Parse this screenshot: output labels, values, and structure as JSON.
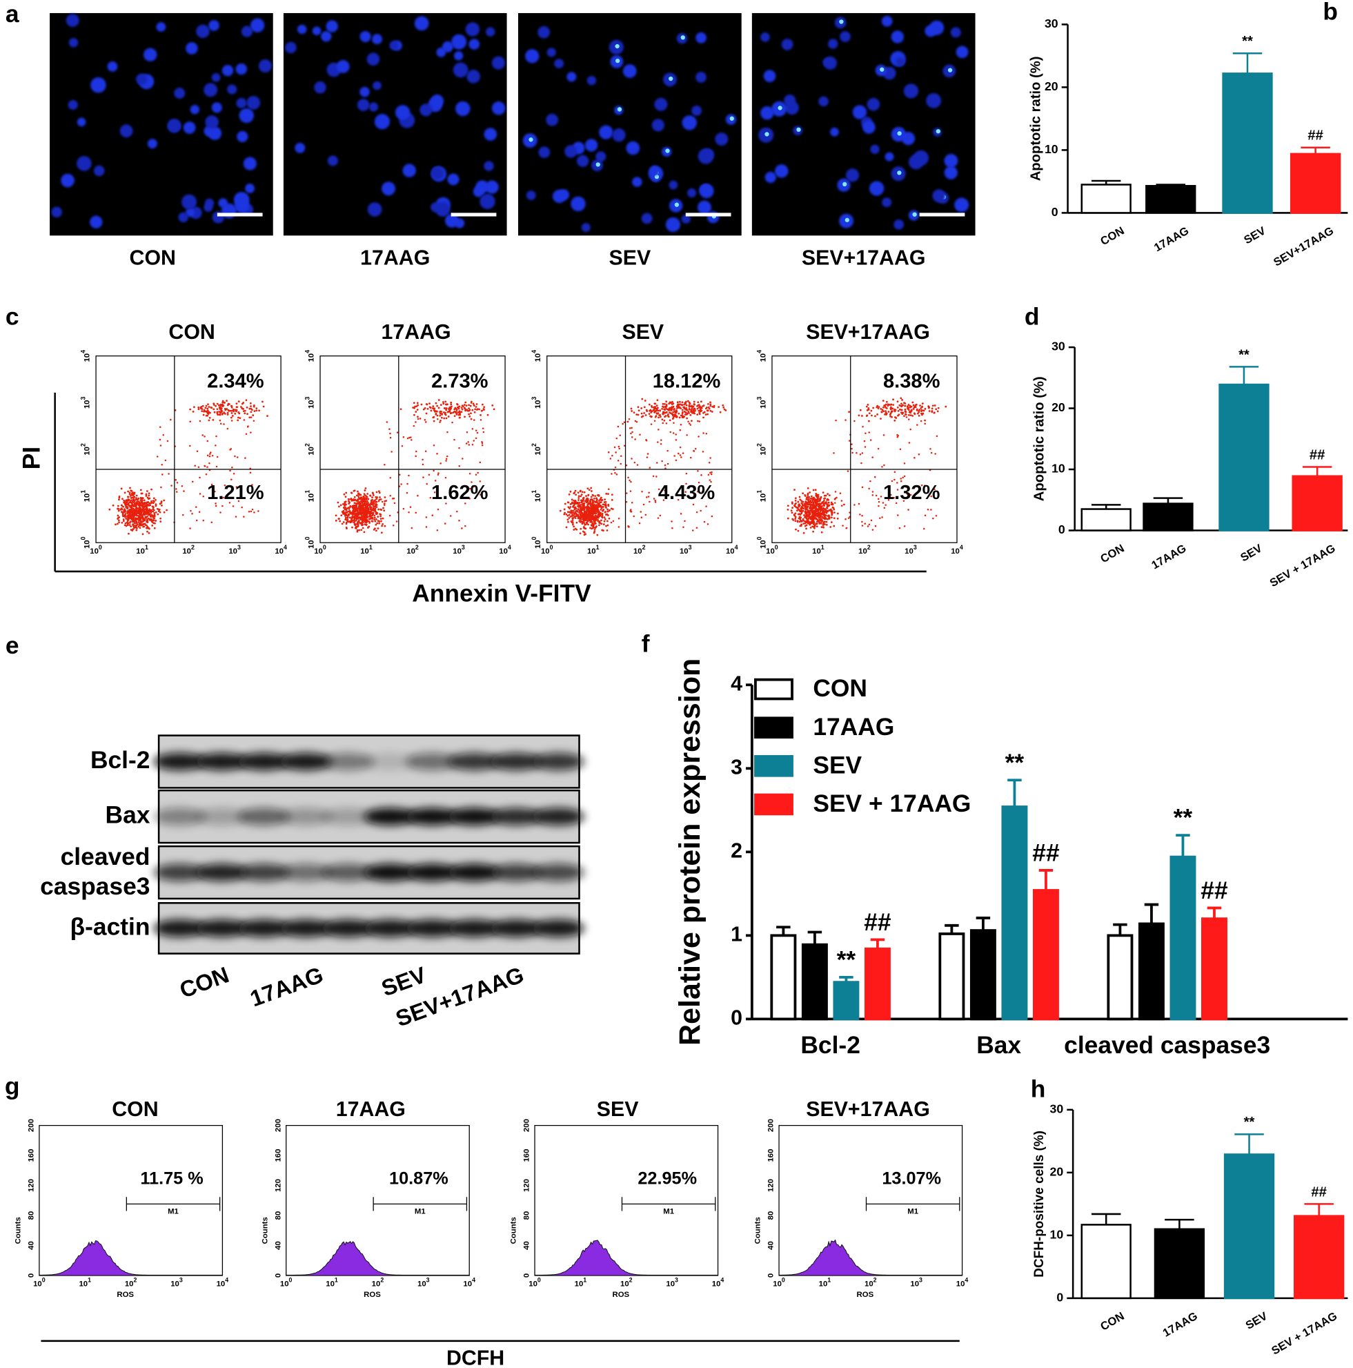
{
  "panel_a": {
    "label": "a",
    "images": [
      "CON",
      "17AAG",
      "SEV",
      "SEV+17AAG"
    ]
  },
  "panel_c": {
    "label": "c",
    "titles": [
      "CON",
      "17AAG",
      "SEV",
      "SEV+17AAG"
    ],
    "upper": [
      "2.34%",
      "2.73%",
      "18.12%",
      "8.38%"
    ],
    "lower": [
      "1.21%",
      "1.62%",
      "4.43%",
      "1.32%"
    ],
    "y_axis_label": "PI",
    "x_axis_label": "Annexin V-FITV",
    "tick_base": "10",
    "tick_exponents": [
      "0",
      "1",
      "2",
      "3",
      "4"
    ]
  },
  "panel_e": {
    "label": "e",
    "rows": [
      "Bcl-2",
      "Bax",
      [
        "cleaved",
        "caspase3"
      ],
      "β-actin"
    ],
    "lanes": [
      "CON",
      "17AAG",
      "SEV",
      "SEV+17AAG"
    ]
  },
  "panel_g": {
    "label": "g",
    "titles": [
      "CON",
      "17AAG",
      "SEV",
      "SEV+17AAG"
    ],
    "percents": [
      "11.75 %",
      "10.87%",
      "22.95%",
      "13.07%"
    ],
    "y_axis_label": "Counts",
    "x_axis_label": "ROS",
    "gate": "M1",
    "yticks": [
      "0",
      "40",
      "80",
      "120",
      "160",
      "200"
    ],
    "tick_base": "10",
    "tick_exponents": [
      "0",
      "1",
      "2",
      "3",
      "4"
    ],
    "title": "DCFH"
  },
  "chart_data": [
    {
      "type": "bar",
      "label": "b",
      "y_axis_label": "Apoptotic ratio (%)",
      "categories": [
        "CON",
        "17AAG",
        "SEV",
        "SEV+17AAG"
      ],
      "values": [
        4.5,
        4.3,
        22.2,
        9.4
      ],
      "errors": [
        0.6,
        0.2,
        3.2,
        1.0
      ],
      "significance": [
        null,
        null,
        "**",
        "##"
      ],
      "colors": [
        "#ffffff",
        "#000000",
        "#0e8096",
        "#ff1a1a"
      ],
      "ylim": [
        0,
        30
      ],
      "yticks": [
        0,
        10,
        20,
        30
      ]
    },
    {
      "type": "bar",
      "label": "d",
      "y_axis_label": "Apoptotic ratio (%)",
      "categories": [
        "CON",
        "17AAG",
        "SEV",
        "SEV + 17AAG"
      ],
      "values": [
        3.5,
        4.4,
        23.9,
        8.9
      ],
      "errors": [
        0.7,
        0.9,
        2.9,
        1.5
      ],
      "significance": [
        null,
        null,
        "**",
        "##"
      ],
      "colors": [
        "#ffffff",
        "#000000",
        "#0e8096",
        "#ff1a1a"
      ],
      "ylim": [
        0,
        30
      ],
      "yticks": [
        0,
        10,
        20,
        30
      ]
    },
    {
      "type": "bar",
      "label": "f",
      "y_axis_label": "Relative protein expression",
      "categories": [
        "Bcl-2",
        "Bax",
        "cleaved caspase3"
      ],
      "series": [
        {
          "name": "CON",
          "color": "#ffffff",
          "values": [
            1.0,
            1.02,
            1.0
          ],
          "errors": [
            0.1,
            0.1,
            0.13
          ],
          "significance": [
            null,
            null,
            null
          ]
        },
        {
          "name": "17AAG",
          "color": "#000000",
          "values": [
            0.89,
            1.06,
            1.14
          ],
          "errors": [
            0.15,
            0.15,
            0.23
          ],
          "significance": [
            null,
            null,
            null
          ]
        },
        {
          "name": "SEV",
          "color": "#0e8096",
          "values": [
            0.44,
            2.54,
            1.94
          ],
          "errors": [
            0.06,
            0.32,
            0.26
          ],
          "significance": [
            "**",
            "**",
            "**"
          ]
        },
        {
          "name": "SEV + 17AAG",
          "color": "#ff1a1a",
          "values": [
            0.84,
            1.54,
            1.2
          ],
          "errors": [
            0.11,
            0.24,
            0.13
          ],
          "significance": [
            "##",
            "##",
            "##"
          ]
        }
      ],
      "ylim": [
        0,
        4
      ],
      "yticks": [
        0,
        1,
        2,
        3,
        4
      ],
      "legend": "upper-left"
    },
    {
      "type": "bar",
      "label": "h",
      "y_axis_label": "DCFH-positive cells (%)",
      "categories": [
        "CON",
        "17AAG",
        "SEV",
        "SEV + 17AAG"
      ],
      "values": [
        11.7,
        11.0,
        22.9,
        13.1
      ],
      "errors": [
        1.7,
        1.5,
        3.2,
        1.9
      ],
      "significance": [
        null,
        null,
        "**",
        "##"
      ],
      "colors": [
        "#ffffff",
        "#000000",
        "#0e8096",
        "#ff1a1a"
      ],
      "ylim": [
        0,
        30
      ],
      "yticks": [
        0,
        10,
        20,
        30
      ]
    }
  ]
}
